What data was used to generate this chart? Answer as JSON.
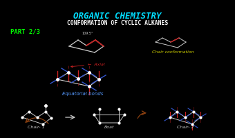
{
  "bg_color": "#000000",
  "title1": "ORGANIC CHEMISTRY",
  "title1_color": "#00ddff",
  "title2": "CONFORMATION OF CYCLIC ALKANES",
  "title2_color": "#ffffff",
  "part_label": "PART 2/3",
  "part_color": "#00ff00",
  "chair_conf_label": "Chair conformation",
  "chair_conf_color": "#cccc00",
  "axial_label": "←  Axial",
  "axial_text_color": "#cc2222",
  "equatorial_label": "Equatorial bonds",
  "equatorial_text_color": "#5599ff",
  "chair1_label": "Chair- 1",
  "boat_label": "Boat",
  "chair2_label": "Chair- 2",
  "label_color": "#cccccc",
  "line_color": "#cccccc",
  "axial_color": "#cc2222",
  "equatorial_color": "#3355cc",
  "arrow_color": "#8b4010"
}
